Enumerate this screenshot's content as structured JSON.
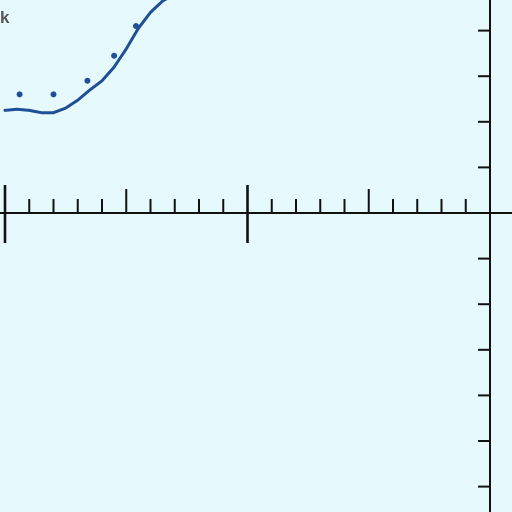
{
  "corner_text": "k",
  "colors": {
    "background": "#e6fafd",
    "axis": "#111111",
    "series": "#1f4f96",
    "text": "#555555"
  },
  "chart_data": {
    "type": "line",
    "title": "",
    "xlabel": "",
    "ylabel": "",
    "grid": false,
    "xlim": [
      -20,
      0
    ],
    "ylim": [
      -12,
      9
    ],
    "x_major_ticks": [
      -20,
      -10,
      0
    ],
    "series": [
      {
        "style": "solid-line",
        "x": [
          -20,
          -19.5,
          -19,
          -18.5,
          -18,
          -17.5,
          -17,
          -16.5,
          -16,
          -15.5,
          -15,
          -14.5,
          -14,
          -13.5,
          -13
        ],
        "y": [
          4.5,
          4.55,
          4.5,
          4.4,
          4.4,
          4.6,
          4.95,
          5.4,
          5.8,
          6.4,
          7.2,
          8.1,
          8.8,
          9.3,
          9.6
        ]
      },
      {
        "style": "dots",
        "x": [
          -19.4,
          -18,
          -16.6,
          -15.5,
          -14.6
        ],
        "y": [
          5.2,
          5.2,
          5.8,
          6.9,
          8.2
        ]
      }
    ]
  }
}
